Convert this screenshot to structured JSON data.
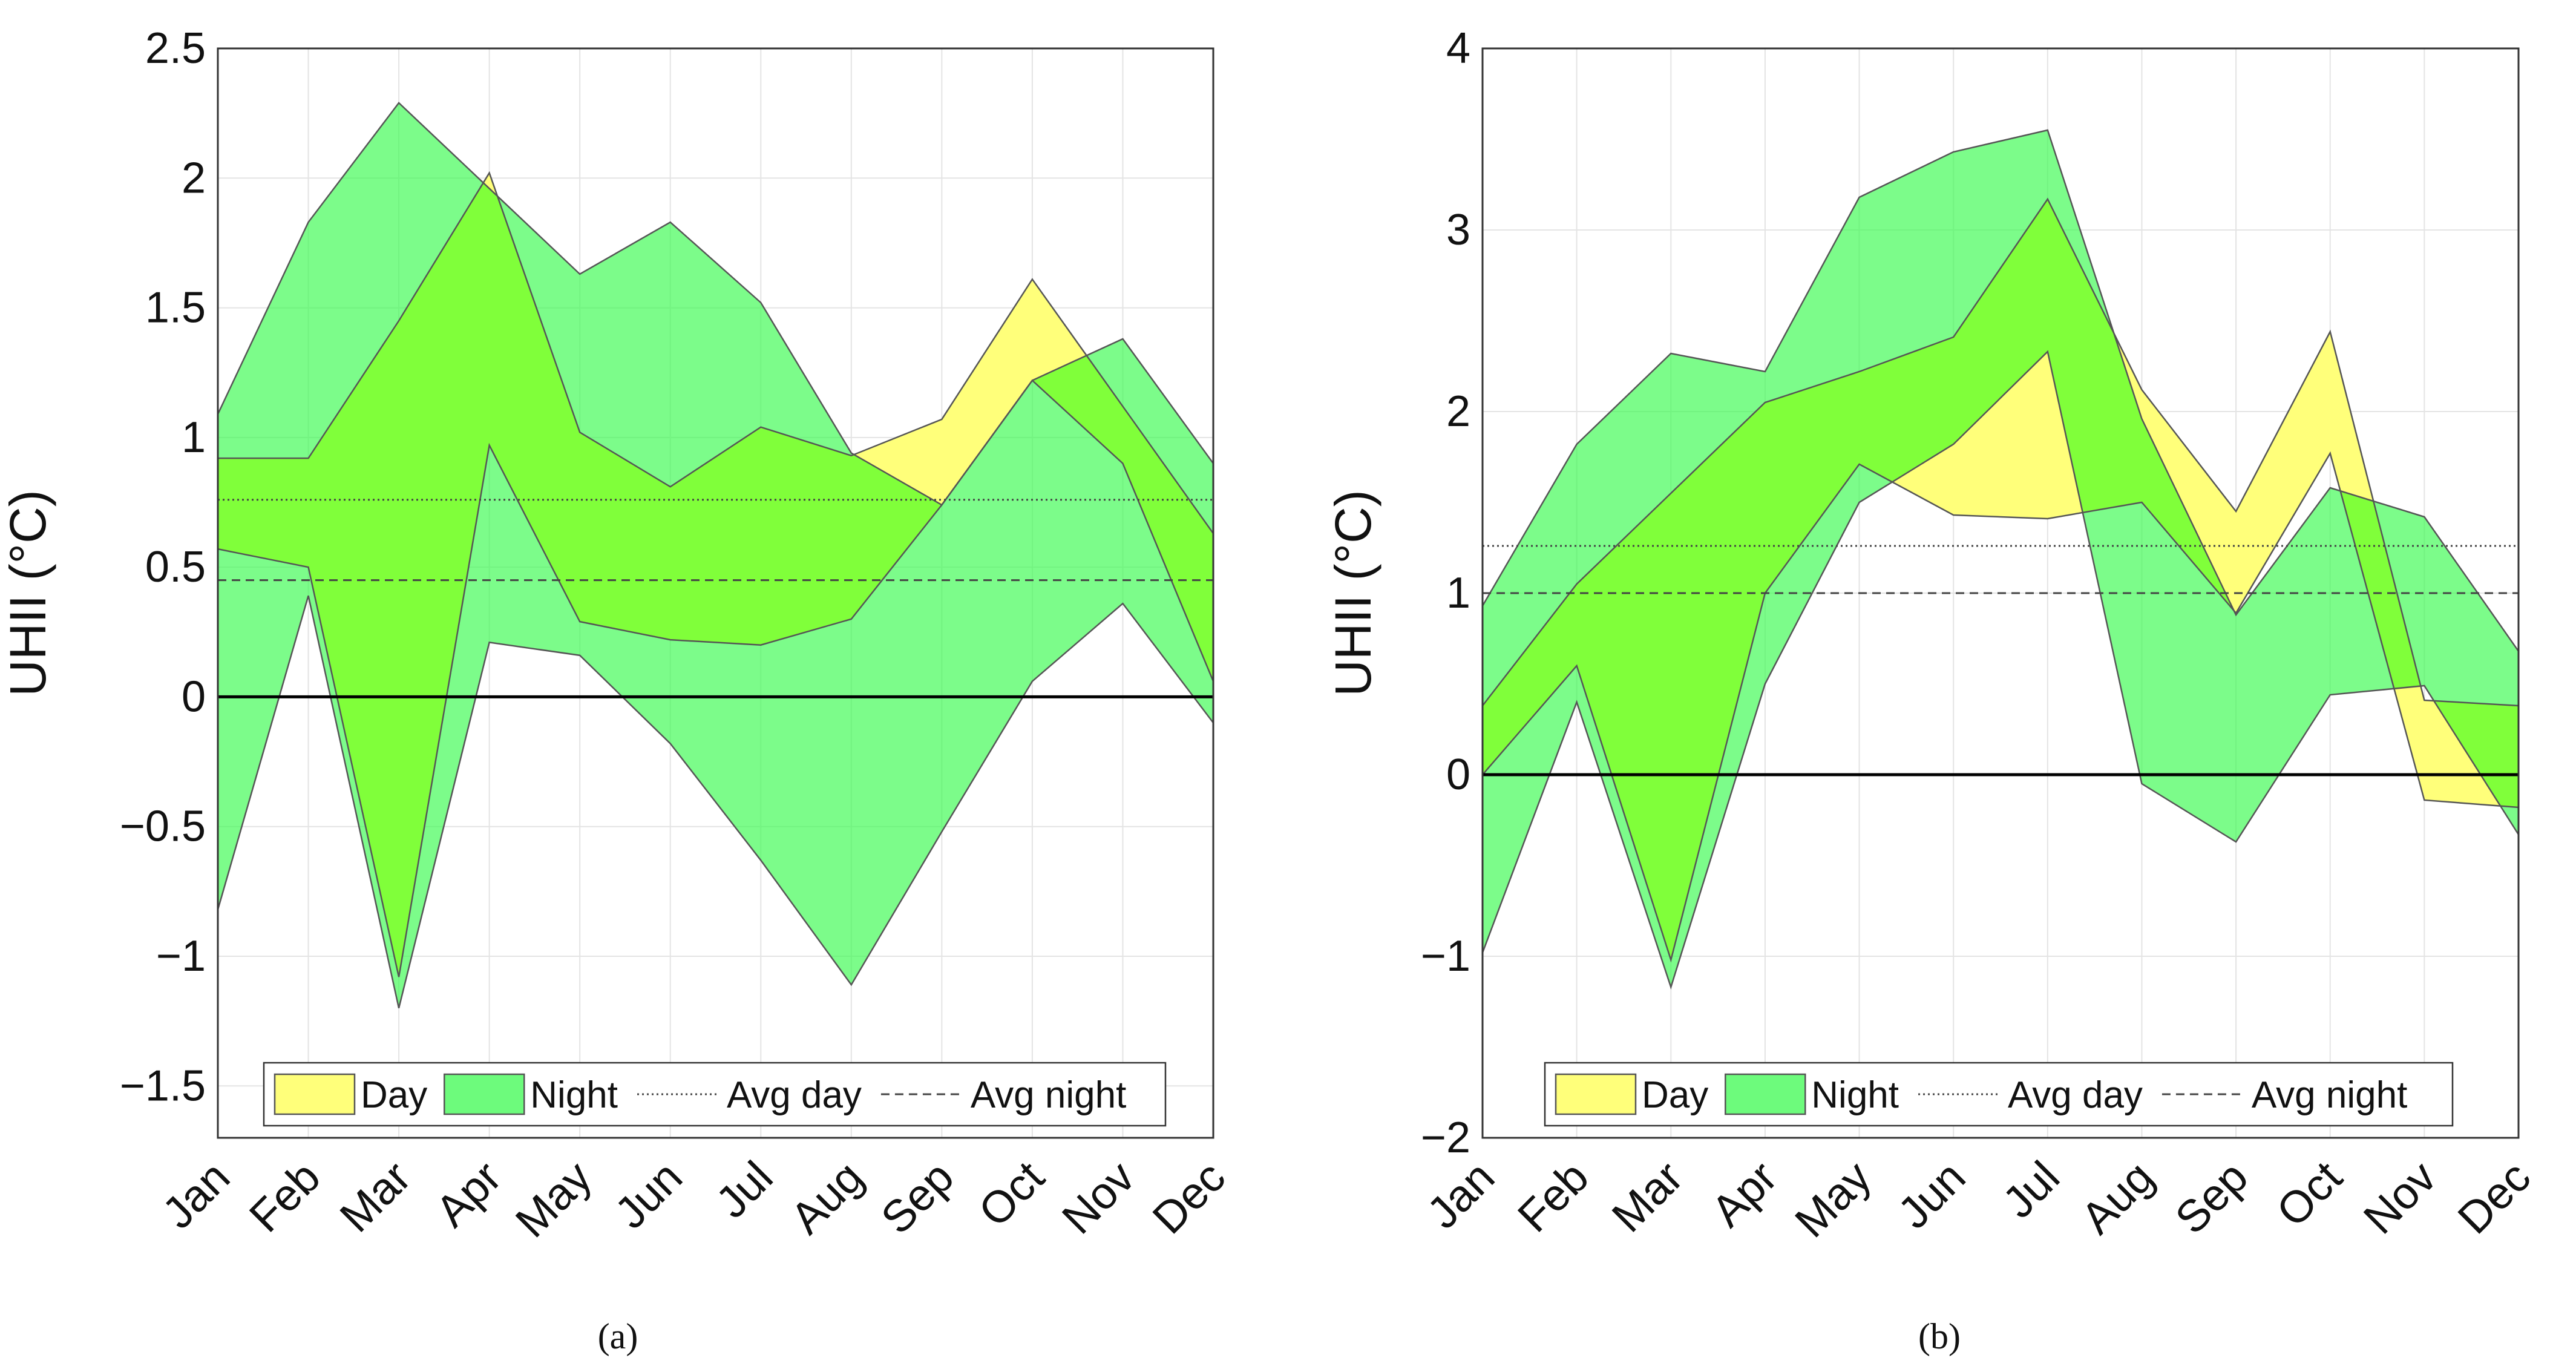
{
  "figure": {
    "captions": [
      "(a)",
      "(b)"
    ]
  },
  "colors": {
    "day_fill": "#ffff7a",
    "night_fill": "#3cfa50",
    "overlap_fill": "#80ff3a",
    "outline": "#555555",
    "grid": "#e4e4e4",
    "axis": "#333333",
    "zero_line": "#000000"
  },
  "chart_data": [
    {
      "type": "area",
      "panel": "(a)",
      "ylabel": "UHII (°C)",
      "xlabel": "",
      "categories": [
        "Jan",
        "Feb",
        "Mar",
        "Apr",
        "May",
        "Jun",
        "Jul",
        "Aug",
        "Sep",
        "Oct",
        "Nov",
        "Dec"
      ],
      "ylim": [
        -1.7,
        2.5
      ],
      "yticks": [
        -1.5,
        -1,
        -0.5,
        0,
        0.5,
        1,
        1.5,
        2,
        2.5
      ],
      "ytick_labels": [
        "−1.5",
        "−1",
        "−0.5",
        "0",
        "0.5",
        "1",
        "1.5",
        "2",
        "2.5"
      ],
      "grid": true,
      "legend_position": "bottom",
      "series": [
        {
          "name": "Day",
          "kind": "band",
          "upper": [
            0.92,
            0.92,
            1.45,
            2.02,
            1.02,
            0.81,
            1.04,
            0.93,
            1.07,
            1.61,
            1.12,
            0.63
          ],
          "lower": [
            0.57,
            0.5,
            -1.08,
            0.97,
            0.29,
            0.22,
            0.2,
            0.3,
            0.74,
            1.22,
            0.9,
            0.06
          ]
        },
        {
          "name": "Night",
          "kind": "band",
          "upper": [
            1.09,
            1.83,
            2.29,
            1.96,
            1.63,
            1.83,
            1.52,
            0.94,
            0.74,
            1.22,
            1.38,
            0.9
          ],
          "lower": [
            -0.82,
            0.39,
            -1.2,
            0.21,
            0.16,
            -0.18,
            -0.63,
            -1.11,
            -0.52,
            0.06,
            0.36,
            -0.1
          ]
        },
        {
          "name": "Avg day",
          "kind": "hline",
          "style": "dotted",
          "value": 0.76
        },
        {
          "name": "Avg night",
          "kind": "hline",
          "style": "dashed",
          "value": 0.45
        }
      ],
      "legend": [
        "Day",
        "Night",
        "Avg day",
        "Avg night"
      ]
    },
    {
      "type": "area",
      "panel": "(b)",
      "ylabel": "UHII (°C)",
      "xlabel": "",
      "categories": [
        "Jan",
        "Feb",
        "Mar",
        "Apr",
        "May",
        "Jun",
        "Jul",
        "Aug",
        "Sep",
        "Oct",
        "Nov",
        "Dec"
      ],
      "ylim": [
        -2,
        4
      ],
      "yticks": [
        -2,
        -1,
        0,
        1,
        2,
        3,
        4
      ],
      "ytick_labels": [
        "−2",
        "−1",
        "0",
        "1",
        "2",
        "3",
        "4"
      ],
      "grid": true,
      "legend_position": "bottom",
      "series": [
        {
          "name": "Day",
          "kind": "band",
          "upper": [
            0.38,
            1.05,
            1.55,
            2.05,
            2.22,
            2.41,
            3.17,
            2.12,
            1.45,
            2.44,
            0.41,
            0.38
          ],
          "lower": [
            0.0,
            0.6,
            -1.02,
            1.0,
            1.71,
            1.43,
            1.41,
            1.5,
            0.89,
            1.77,
            -0.14,
            -0.18
          ]
        },
        {
          "name": "Night",
          "kind": "band",
          "upper": [
            0.93,
            1.82,
            2.32,
            2.22,
            3.18,
            3.43,
            3.55,
            1.96,
            0.88,
            1.58,
            1.42,
            0.68
          ],
          "lower": [
            -0.98,
            0.4,
            -1.17,
            0.5,
            1.5,
            1.82,
            2.33,
            -0.05,
            -0.37,
            0.44,
            0.49,
            -0.33
          ]
        },
        {
          "name": "Avg day",
          "kind": "hline",
          "style": "dotted",
          "value": 1.26
        },
        {
          "name": "Avg night",
          "kind": "hline",
          "style": "dashed",
          "value": 1.0
        }
      ],
      "legend": [
        "Day",
        "Night",
        "Avg day",
        "Avg night"
      ]
    }
  ]
}
